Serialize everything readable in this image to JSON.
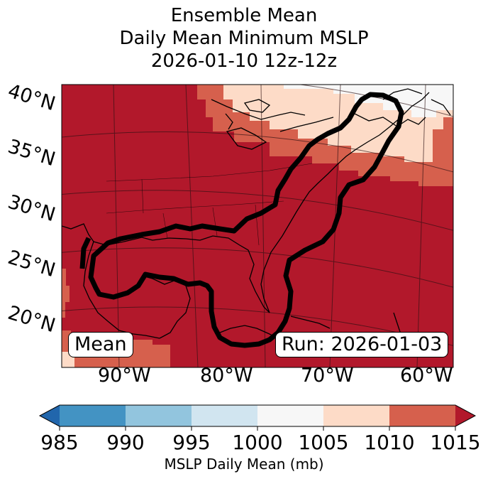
{
  "title": {
    "line1": "Ensemble Mean",
    "line2": "Daily Mean Minimum MSLP",
    "line3": "2026-01-10 12z-12z"
  },
  "map": {
    "lat_labels": [
      "40°N",
      "35°N",
      "30°N",
      "25°N",
      "20°N"
    ],
    "lon_labels": [
      "90°W",
      "80°W",
      "70°W",
      "60°W"
    ],
    "mean_box": "Mean",
    "run_box": "Run: 2026-01-03",
    "colors": {
      "c1015": "#b2182b",
      "c1010": "#d6604d",
      "c1005": "#fddbc7",
      "c1000": "#f7f7f7",
      "c995": "#d1e5f0",
      "c990": "#92c5de",
      "c985": "#4393c3",
      "below": "#2166ac"
    }
  },
  "colorbar": {
    "ticks": [
      "985",
      "990",
      "995",
      "1000",
      "1005",
      "1010",
      "1015"
    ],
    "label": "MSLP Daily Mean (mb)"
  }
}
